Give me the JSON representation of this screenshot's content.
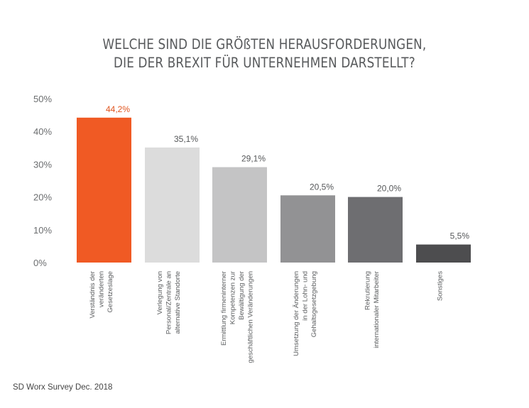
{
  "chart_data": {
    "type": "bar",
    "title_lines": [
      "WELCHE SIND DIE GRÖßTEN HERAUSFORDERUNGEN,",
      "DIE DER BREXIT FÜR UNTERNEHMEN DARSTELLT?"
    ],
    "ylim": [
      0,
      50
    ],
    "yticks": [
      {
        "value": 0,
        "label": "0%"
      },
      {
        "value": 10,
        "label": "10%"
      },
      {
        "value": 20,
        "label": "20%"
      },
      {
        "value": 30,
        "label": "30%"
      },
      {
        "value": 40,
        "label": "40%"
      },
      {
        "value": 50,
        "label": "50%"
      }
    ],
    "xlabel": "",
    "ylabel": "",
    "grid": false,
    "bars": [
      {
        "category_lines": [
          "Verständnis der",
          "veränderten",
          "Gesetzeslage"
        ],
        "value": 44.2,
        "label": "44,2%",
        "color": "#f05a24",
        "label_color": "#e0541d"
      },
      {
        "category_lines": [
          "Verlegung von",
          "Personal/Zentrale an",
          "alternative Standorte"
        ],
        "value": 35.1,
        "label": "35,1%",
        "color": "#dcdcdc",
        "label_color": "#555759"
      },
      {
        "category_lines": [
          "Ermittlung firmeninterner",
          "Kompetenzen zur",
          "Bewältigung der",
          "geschäftlichen Veränderungen"
        ],
        "value": 29.1,
        "label": "29,1%",
        "color": "#c4c4c5",
        "label_color": "#555759"
      },
      {
        "category_lines": [
          "Umsetzung der Änderungen",
          "in der Lohn- und",
          "Gehaltsgesetzgebung"
        ],
        "value": 20.5,
        "label": "20,5%",
        "color": "#929294",
        "label_color": "#555759"
      },
      {
        "category_lines": [
          "Rekrutierung",
          "internationaler Mitarbeiter"
        ],
        "value": 20.0,
        "label": "20,0%",
        "color": "#6e6e71",
        "label_color": "#555759"
      },
      {
        "category_lines": [
          "Sonstiges"
        ],
        "value": 5.5,
        "label": "5,5%",
        "color": "#4d4d4f",
        "label_color": "#555759"
      }
    ]
  },
  "source": "SD Worx Survey Dec. 2018"
}
